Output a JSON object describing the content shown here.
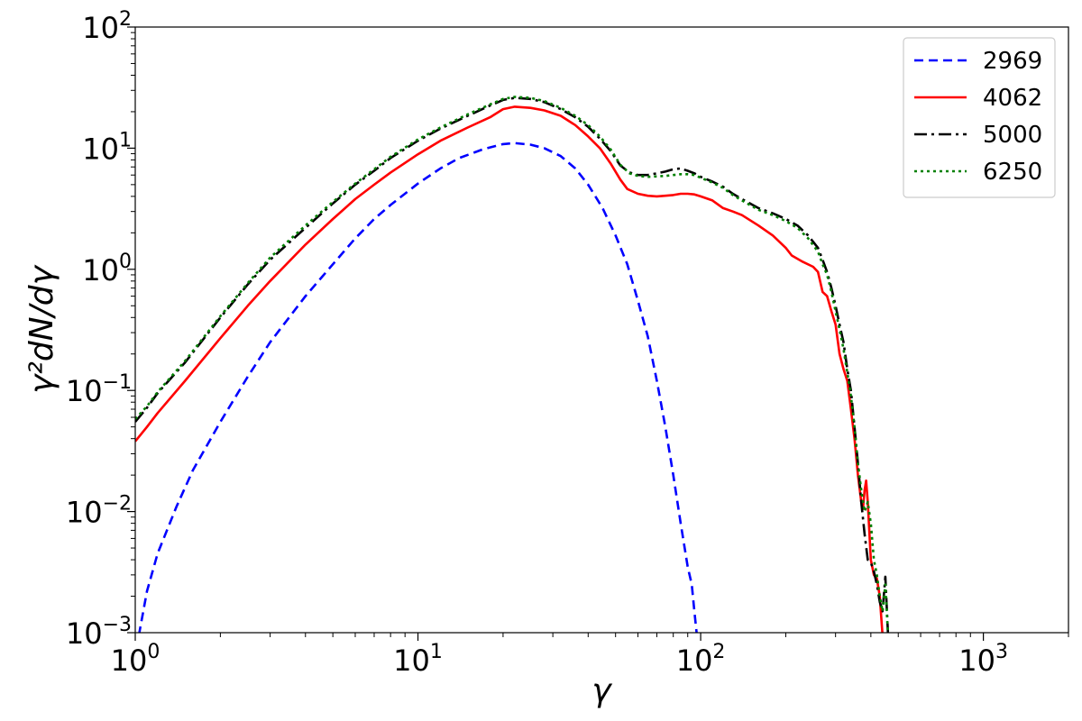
{
  "chart_data": {
    "type": "line",
    "title": "",
    "xlabel": "γ",
    "ylabel": "γ²dN/dγ",
    "xscale": "log",
    "yscale": "log",
    "xlim": [
      1,
      2000
    ],
    "ylim": [
      0.001,
      100
    ],
    "grid": false,
    "legend_position": "top-right",
    "x_ticks": [
      {
        "value": 1,
        "base": "10",
        "exp": "0"
      },
      {
        "value": 10,
        "base": "10",
        "exp": "1"
      },
      {
        "value": 100,
        "base": "10",
        "exp": "2"
      },
      {
        "value": 1000,
        "base": "10",
        "exp": "3"
      }
    ],
    "y_ticks": [
      {
        "value": 0.001,
        "base": "10",
        "exp": "−3"
      },
      {
        "value": 0.01,
        "base": "10",
        "exp": "−2"
      },
      {
        "value": 0.1,
        "base": "10",
        "exp": "−1"
      },
      {
        "value": 1,
        "base": "10",
        "exp": "0"
      },
      {
        "value": 10,
        "base": "10",
        "exp": "1"
      },
      {
        "value": 100,
        "base": "10",
        "exp": "2"
      }
    ],
    "series": [
      {
        "name": "2969",
        "color": "#0000ff",
        "dash": "dashed",
        "points": [
          [
            1.03,
            0.00095
          ],
          [
            1.1,
            0.0022
          ],
          [
            1.2,
            0.0045
          ],
          [
            1.4,
            0.011
          ],
          [
            1.6,
            0.022
          ],
          [
            2,
            0.055
          ],
          [
            2.5,
            0.13
          ],
          [
            3,
            0.25
          ],
          [
            4,
            0.6
          ],
          [
            5,
            1.1
          ],
          [
            6,
            1.8
          ],
          [
            7,
            2.6
          ],
          [
            8,
            3.4
          ],
          [
            10,
            5.1
          ],
          [
            12,
            6.8
          ],
          [
            14,
            8.3
          ],
          [
            17,
            9.8
          ],
          [
            20,
            10.8
          ],
          [
            22,
            11.0
          ],
          [
            25,
            10.7
          ],
          [
            28,
            10.0
          ],
          [
            32,
            8.6
          ],
          [
            36,
            6.8
          ],
          [
            40,
            5.0
          ],
          [
            45,
            3.2
          ],
          [
            50,
            1.9
          ],
          [
            55,
            1.1
          ],
          [
            60,
            0.55
          ],
          [
            65,
            0.28
          ],
          [
            70,
            0.12
          ],
          [
            75,
            0.05
          ],
          [
            80,
            0.02
          ],
          [
            85,
            0.008
          ],
          [
            90,
            0.0035
          ],
          [
            93,
            0.0025
          ],
          [
            95,
            0.0015
          ],
          [
            97,
            0.00095
          ]
        ]
      },
      {
        "name": "4062",
        "color": "#ff0000",
        "dash": "solid",
        "points": [
          [
            1,
            0.038
          ],
          [
            1.1,
            0.05
          ],
          [
            1.2,
            0.065
          ],
          [
            1.5,
            0.12
          ],
          [
            2,
            0.27
          ],
          [
            2.5,
            0.5
          ],
          [
            3,
            0.8
          ],
          [
            4,
            1.6
          ],
          [
            5,
            2.6
          ],
          [
            6,
            3.8
          ],
          [
            7,
            5.0
          ],
          [
            8,
            6.3
          ],
          [
            10,
            8.9
          ],
          [
            12,
            11.5
          ],
          [
            15,
            14.8
          ],
          [
            18,
            18
          ],
          [
            20,
            21
          ],
          [
            22,
            22
          ],
          [
            25,
            21.5
          ],
          [
            28,
            20.5
          ],
          [
            32,
            18.5
          ],
          [
            36,
            15.5
          ],
          [
            40,
            12.5
          ],
          [
            44,
            10
          ],
          [
            48,
            7.5
          ],
          [
            52,
            5.5
          ],
          [
            55,
            4.6
          ],
          [
            60,
            4.2
          ],
          [
            65,
            4.05
          ],
          [
            70,
            4.0
          ],
          [
            75,
            4.05
          ],
          [
            80,
            4.1
          ],
          [
            85,
            4.2
          ],
          [
            90,
            4.2
          ],
          [
            95,
            4.15
          ],
          [
            100,
            4.0
          ],
          [
            110,
            3.7
          ],
          [
            120,
            3.2
          ],
          [
            130,
            3.0
          ],
          [
            140,
            2.8
          ],
          [
            160,
            2.3
          ],
          [
            180,
            1.9
          ],
          [
            200,
            1.5
          ],
          [
            210,
            1.3
          ],
          [
            230,
            1.15
          ],
          [
            250,
            1.05
          ],
          [
            260,
            0.95
          ],
          [
            270,
            0.65
          ],
          [
            280,
            0.6
          ],
          [
            290,
            0.45
          ],
          [
            300,
            0.35
          ],
          [
            310,
            0.2
          ],
          [
            320,
            0.15
          ],
          [
            330,
            0.12
          ],
          [
            340,
            0.07
          ],
          [
            350,
            0.04
          ],
          [
            360,
            0.02
          ],
          [
            370,
            0.012
          ],
          [
            375,
            0.0105
          ],
          [
            380,
            0.015
          ],
          [
            385,
            0.018
          ],
          [
            390,
            0.012
          ],
          [
            400,
            0.004
          ],
          [
            410,
            0.003
          ],
          [
            420,
            0.0028
          ],
          [
            430,
            0.002
          ],
          [
            440,
            0.00095
          ]
        ]
      },
      {
        "name": "5000",
        "color": "#000000",
        "dash": "dashdot",
        "points": [
          [
            1,
            0.055
          ],
          [
            1.1,
            0.072
          ],
          [
            1.2,
            0.095
          ],
          [
            1.5,
            0.17
          ],
          [
            2,
            0.4
          ],
          [
            2.5,
            0.75
          ],
          [
            3,
            1.2
          ],
          [
            4,
            2.2
          ],
          [
            5,
            3.5
          ],
          [
            6,
            5
          ],
          [
            7,
            6.5
          ],
          [
            8,
            8.3
          ],
          [
            10,
            11.5
          ],
          [
            12,
            14.5
          ],
          [
            15,
            18.5
          ],
          [
            18,
            22.5
          ],
          [
            20,
            25
          ],
          [
            22,
            26
          ],
          [
            25,
            25.5
          ],
          [
            28,
            24
          ],
          [
            32,
            21
          ],
          [
            36,
            18
          ],
          [
            40,
            15
          ],
          [
            44,
            12
          ],
          [
            48,
            9.5
          ],
          [
            52,
            7.2
          ],
          [
            56,
            6.3
          ],
          [
            60,
            6.0
          ],
          [
            65,
            6.0
          ],
          [
            70,
            6.2
          ],
          [
            75,
            6.4
          ],
          [
            80,
            6.7
          ],
          [
            85,
            6.8
          ],
          [
            90,
            6.5
          ],
          [
            95,
            6.2
          ],
          [
            100,
            5.8
          ],
          [
            110,
            5.3
          ],
          [
            120,
            4.8
          ],
          [
            130,
            4.2
          ],
          [
            140,
            3.8
          ],
          [
            160,
            3.2
          ],
          [
            180,
            2.9
          ],
          [
            200,
            2.6
          ],
          [
            220,
            2.3
          ],
          [
            240,
            1.9
          ],
          [
            260,
            1.5
          ],
          [
            270,
            1.2
          ],
          [
            280,
            0.95
          ],
          [
            290,
            0.7
          ],
          [
            300,
            0.5
          ],
          [
            310,
            0.35
          ],
          [
            320,
            0.25
          ],
          [
            330,
            0.15
          ],
          [
            340,
            0.1
          ],
          [
            350,
            0.05
          ],
          [
            360,
            0.025
          ],
          [
            370,
            0.012
          ],
          [
            380,
            0.0065
          ],
          [
            390,
            0.004
          ],
          [
            400,
            0.0038
          ],
          [
            410,
            0.0032
          ],
          [
            420,
            0.0025
          ],
          [
            430,
            0.0018
          ],
          [
            440,
            0.0015
          ],
          [
            450,
            0.0029
          ],
          [
            460,
            0.00095
          ]
        ]
      },
      {
        "name": "6250",
        "color": "#008000",
        "dash": "dotted",
        "points": [
          [
            1,
            0.058
          ],
          [
            1.1,
            0.074
          ],
          [
            1.2,
            0.097
          ],
          [
            1.5,
            0.175
          ],
          [
            2,
            0.41
          ],
          [
            2.5,
            0.77
          ],
          [
            3,
            1.25
          ],
          [
            4,
            2.3
          ],
          [
            5,
            3.6
          ],
          [
            6,
            5.1
          ],
          [
            7,
            6.7
          ],
          [
            8,
            8.5
          ],
          [
            10,
            11.8
          ],
          [
            12,
            14.8
          ],
          [
            15,
            19
          ],
          [
            18,
            23
          ],
          [
            20,
            25.5
          ],
          [
            22,
            26.5
          ],
          [
            25,
            26
          ],
          [
            28,
            24.5
          ],
          [
            32,
            21.5
          ],
          [
            36,
            18.5
          ],
          [
            40,
            15.5
          ],
          [
            44,
            12.5
          ],
          [
            48,
            9.8
          ],
          [
            52,
            7.3
          ],
          [
            56,
            6.2
          ],
          [
            60,
            5.9
          ],
          [
            65,
            5.8
          ],
          [
            70,
            5.85
          ],
          [
            75,
            5.9
          ],
          [
            80,
            6.0
          ],
          [
            85,
            6.1
          ],
          [
            90,
            6.1
          ],
          [
            95,
            6.0
          ],
          [
            100,
            5.7
          ],
          [
            110,
            5.2
          ],
          [
            120,
            4.7
          ],
          [
            130,
            4.1
          ],
          [
            140,
            3.7
          ],
          [
            160,
            3.1
          ],
          [
            180,
            2.8
          ],
          [
            200,
            2.5
          ],
          [
            220,
            2.2
          ],
          [
            240,
            1.8
          ],
          [
            260,
            1.4
          ],
          [
            270,
            1.1
          ],
          [
            280,
            0.9
          ],
          [
            290,
            0.65
          ],
          [
            300,
            0.45
          ],
          [
            310,
            0.32
          ],
          [
            320,
            0.22
          ],
          [
            330,
            0.14
          ],
          [
            340,
            0.09
          ],
          [
            350,
            0.05
          ],
          [
            360,
            0.025
          ],
          [
            370,
            0.015
          ],
          [
            380,
            0.01
          ],
          [
            390,
            0.012
          ],
          [
            400,
            0.008
          ],
          [
            410,
            0.004
          ],
          [
            420,
            0.003
          ],
          [
            430,
            0.002
          ],
          [
            440,
            0.0015
          ],
          [
            450,
            0.0025
          ],
          [
            460,
            0.00095
          ]
        ]
      }
    ]
  }
}
